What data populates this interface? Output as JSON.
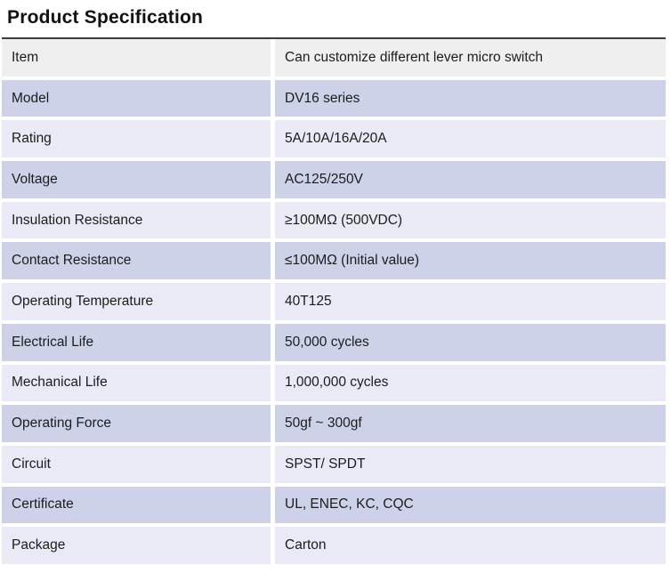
{
  "title": "Product Specification",
  "colors": {
    "first_row_bg": "#efefef",
    "row_dark_bg": "#cdd2e9",
    "row_light_bg": "#e9eaf5",
    "top_rule": "#3c3c3c",
    "text": "#1c1c1c"
  },
  "table": {
    "rows": [
      {
        "label": "Item",
        "value": "Can customize different lever micro switch"
      },
      {
        "label": "Model",
        "value": "DV16 series"
      },
      {
        "label": "Rating",
        "value": "5A/10A/16A/20A"
      },
      {
        "label": "Voltage",
        "value": "AC125/250V"
      },
      {
        "label": "Insulation Resistance",
        "value": "≥100MΩ (500VDC)"
      },
      {
        "label": "Contact Resistance",
        "value": "≤100MΩ (Initial value)"
      },
      {
        "label": "Operating Temperature",
        "value": "40T125"
      },
      {
        "label": "Electrical Life",
        "value": "50,000 cycles"
      },
      {
        "label": "Mechanical Life",
        "value": "1,000,000 cycles"
      },
      {
        "label": "Operating Force",
        "value": "50gf ~ 300gf"
      },
      {
        "label": "Circuit",
        "value": "SPST/ SPDT"
      },
      {
        "label": "Certificate",
        "value": "UL, ENEC, KC, CQC"
      },
      {
        "label": "Package",
        "value": "Carton"
      }
    ]
  }
}
